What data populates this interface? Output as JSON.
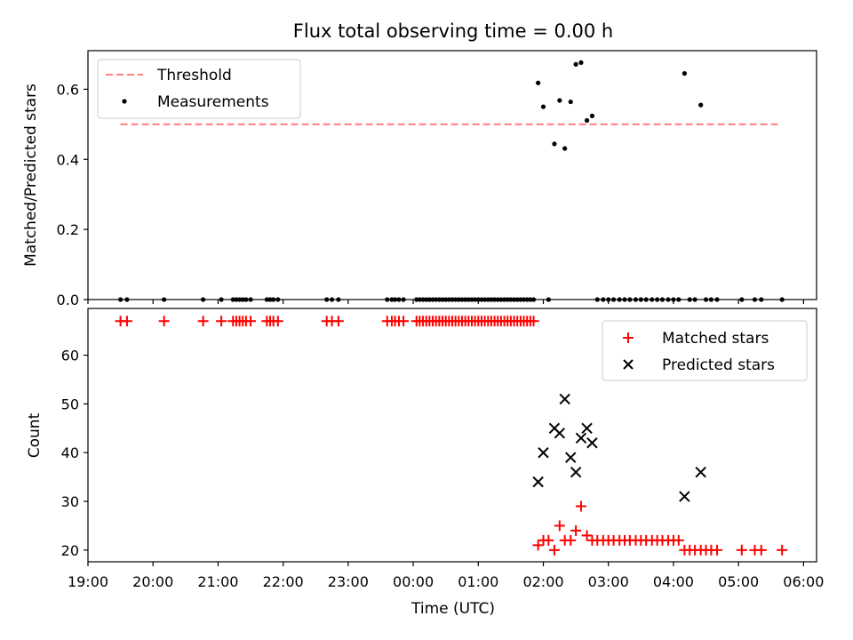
{
  "title": "Flux total observing time = 0.00 h",
  "xlabel": "Time (UTC)",
  "chart_data": [
    {
      "type": "scatter",
      "ylabel": "Matched/Predicted stars",
      "ylim": [
        0,
        0.71
      ],
      "yticks": [
        0.0,
        0.2,
        0.4,
        0.6
      ],
      "ytick_labels": [
        "0.0",
        "0.2",
        "0.4",
        "0.6"
      ],
      "xlim_hours": [
        19.0,
        30.2
      ],
      "legend": {
        "placement": "top-left",
        "entries": [
          "Threshold",
          "Measurements"
        ]
      },
      "threshold": {
        "name": "Threshold",
        "y": 0.5,
        "x_start": 19.5,
        "x_end": 29.65,
        "color": "#ff8080"
      },
      "measurements": {
        "name": "Measurements",
        "color": "#000000",
        "x": [
          19.5,
          19.6,
          20.17,
          20.77,
          21.05,
          21.23,
          21.28,
          21.33,
          21.38,
          21.43,
          21.5,
          21.75,
          21.8,
          21.85,
          21.92,
          22.67,
          22.75,
          22.85,
          23.6,
          23.67,
          23.72,
          23.78,
          23.85,
          24.05,
          24.1,
          24.15,
          24.2,
          24.25,
          24.3,
          24.35,
          24.4,
          24.45,
          24.5,
          24.55,
          24.6,
          24.65,
          24.7,
          24.75,
          24.8,
          24.85,
          24.9,
          24.95,
          25.0,
          25.05,
          25.1,
          25.15,
          25.2,
          25.25,
          25.3,
          25.35,
          25.4,
          25.45,
          25.5,
          25.55,
          25.6,
          25.65,
          25.7,
          25.75,
          25.8,
          25.85,
          25.92,
          26.0,
          26.08,
          26.17,
          26.25,
          26.33,
          26.42,
          26.5,
          26.58,
          26.67,
          26.75,
          26.83,
          26.92,
          27.0,
          27.08,
          27.17,
          27.25,
          27.33,
          27.42,
          27.5,
          27.58,
          27.67,
          27.75,
          27.83,
          27.92,
          28.0,
          28.08,
          28.17,
          28.25,
          28.33,
          28.42,
          28.5,
          28.58,
          28.67,
          29.05,
          29.25,
          29.35,
          29.67
        ],
        "y": [
          0,
          0,
          0,
          0,
          0,
          0,
          0,
          0,
          0,
          0,
          0,
          0,
          0,
          0,
          0,
          0,
          0,
          0,
          0,
          0,
          0,
          0,
          0,
          0,
          0,
          0,
          0,
          0,
          0,
          0,
          0,
          0,
          0,
          0,
          0,
          0,
          0,
          0,
          0,
          0,
          0,
          0,
          0,
          0,
          0,
          0,
          0,
          0,
          0,
          0,
          0,
          0,
          0,
          0,
          0,
          0,
          0,
          0,
          0,
          0,
          0.618,
          0.55,
          0,
          0.444,
          0.568,
          0.431,
          0.564,
          0.671,
          0.676,
          0.511,
          0.524,
          0,
          0,
          0,
          0,
          0,
          0,
          0,
          0,
          0,
          0,
          0,
          0,
          0,
          0,
          0,
          0,
          0.645,
          0,
          0,
          0.555,
          0,
          0,
          0,
          0,
          0,
          0,
          0
        ]
      }
    },
    {
      "type": "scatter",
      "ylabel": "Count",
      "ylim": [
        17.6,
        69.6
      ],
      "yticks": [
        20,
        30,
        40,
        50,
        60
      ],
      "ytick_labels": [
        "20",
        "30",
        "40",
        "50",
        "60"
      ],
      "xlim_hours": [
        19.0,
        30.2
      ],
      "xticks_hours": [
        19,
        20,
        21,
        22,
        23,
        24,
        25,
        26,
        27,
        28,
        29,
        30
      ],
      "xtick_labels": [
        "19:00",
        "20:00",
        "21:00",
        "22:00",
        "23:00",
        "00:00",
        "01:00",
        "02:00",
        "03:00",
        "04:00",
        "05:00",
        "06:00"
      ],
      "legend": {
        "placement": "top-right",
        "entries": [
          "Matched stars",
          "Predicted stars"
        ]
      },
      "series": [
        {
          "name": "Matched stars",
          "marker": "plus",
          "color": "#ff0000",
          "x": [
            19.5,
            19.6,
            20.17,
            20.77,
            21.05,
            21.23,
            21.28,
            21.33,
            21.38,
            21.43,
            21.5,
            21.75,
            21.8,
            21.85,
            21.92,
            22.67,
            22.75,
            22.85,
            23.6,
            23.67,
            23.72,
            23.78,
            23.85,
            24.05,
            24.1,
            24.15,
            24.2,
            24.25,
            24.3,
            24.35,
            24.4,
            24.45,
            24.5,
            24.55,
            24.6,
            24.65,
            24.7,
            24.75,
            24.8,
            24.85,
            24.9,
            24.95,
            25.0,
            25.05,
            25.1,
            25.15,
            25.2,
            25.25,
            25.3,
            25.35,
            25.4,
            25.45,
            25.5,
            25.55,
            25.6,
            25.65,
            25.7,
            25.75,
            25.8,
            25.85,
            25.92,
            26.0,
            26.08,
            26.17,
            26.25,
            26.33,
            26.42,
            26.5,
            26.58,
            26.67,
            26.75,
            26.83,
            26.92,
            27.0,
            27.08,
            27.17,
            27.25,
            27.33,
            27.42,
            27.5,
            27.58,
            27.67,
            27.75,
            27.83,
            27.92,
            28.0,
            28.08,
            28.17,
            28.25,
            28.33,
            28.42,
            28.5,
            28.58,
            28.67,
            29.05,
            29.25,
            29.35,
            29.67
          ],
          "y": [
            67,
            67,
            67,
            67,
            67,
            67,
            67,
            67,
            67,
            67,
            67,
            67,
            67,
            67,
            67,
            67,
            67,
            67,
            67,
            67,
            67,
            67,
            67,
            67,
            67,
            67,
            67,
            67,
            67,
            67,
            67,
            67,
            67,
            67,
            67,
            67,
            67,
            67,
            67,
            67,
            67,
            67,
            67,
            67,
            67,
            67,
            67,
            67,
            67,
            67,
            67,
            67,
            67,
            67,
            67,
            67,
            67,
            67,
            67,
            67,
            21,
            22,
            22,
            20,
            25,
            22,
            22,
            24,
            29,
            23,
            22,
            22,
            22,
            22,
            22,
            22,
            22,
            22,
            22,
            22,
            22,
            22,
            22,
            22,
            22,
            22,
            22,
            20,
            20,
            20,
            20,
            20,
            20,
            20,
            20,
            20,
            20,
            20
          ]
        },
        {
          "name": "Predicted stars",
          "marker": "x",
          "color": "#000000",
          "x": [
            25.92,
            26.0,
            26.17,
            26.25,
            26.33,
            26.42,
            26.5,
            26.58,
            26.67,
            26.75,
            28.17,
            28.42
          ],
          "y": [
            34,
            40,
            45,
            44,
            51,
            39,
            36,
            43,
            45,
            42,
            31,
            36
          ]
        }
      ]
    }
  ]
}
